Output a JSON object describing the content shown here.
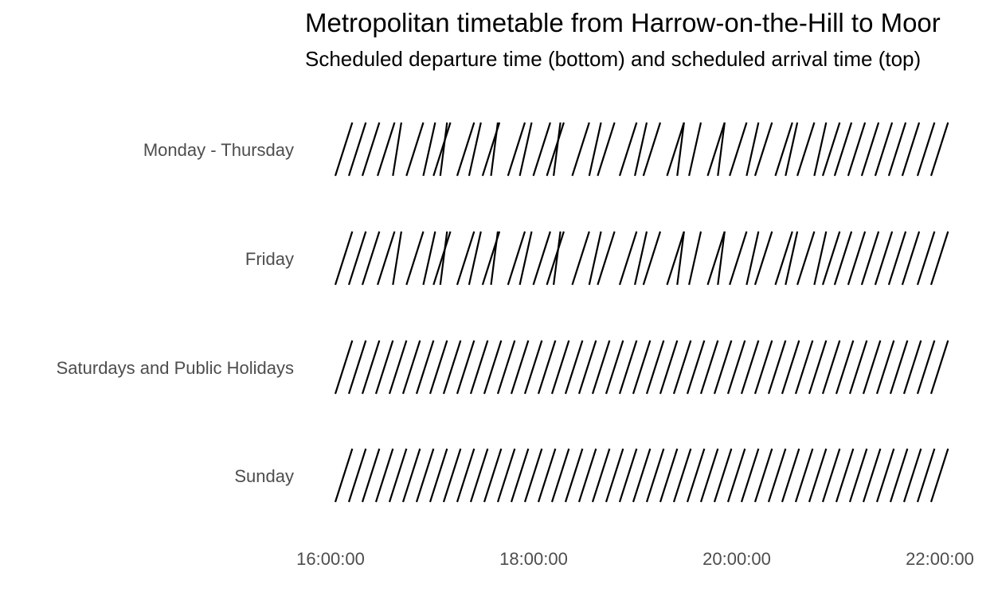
{
  "chart_data": {
    "type": "line",
    "title": "Metropolitan timetable from Harrow-on-the-Hill to Moor",
    "subtitle": "Scheduled departure time (bottom) and scheduled arrival time (top)",
    "xlabel": "",
    "ylabel": "",
    "grid": false,
    "legend": "none",
    "line_color": "#000000",
    "x_ticks": [
      "16:00:00",
      "18:00:00",
      "20:00:00",
      "22:00:00"
    ],
    "xlim": [
      "16:00",
      "22:00"
    ],
    "categories": [
      "Monday - Thursday",
      "Friday",
      "Saturdays and Public Holidays",
      "Sunday"
    ],
    "series": [
      {
        "name": "Monday - Thursday",
        "trips": [
          {
            "depart": "16:00",
            "arrive": "16:10"
          },
          {
            "depart": "16:08",
            "arrive": "16:18"
          },
          {
            "depart": "16:16",
            "arrive": "16:26"
          },
          {
            "depart": "16:25",
            "arrive": "16:35"
          },
          {
            "depart": "16:34",
            "arrive": "16:39"
          },
          {
            "depart": "16:42",
            "arrive": "16:52"
          },
          {
            "depart": "16:52",
            "arrive": "16:59"
          },
          {
            "depart": "16:58",
            "arrive": "17:08"
          },
          {
            "depart": "17:02",
            "arrive": "17:06"
          },
          {
            "depart": "17:12",
            "arrive": "17:22"
          },
          {
            "depart": "17:19",
            "arrive": "17:26"
          },
          {
            "depart": "17:27",
            "arrive": "17:37"
          },
          {
            "depart": "17:32",
            "arrive": "17:36"
          },
          {
            "depart": "17:42",
            "arrive": "17:52"
          },
          {
            "depart": "17:49",
            "arrive": "17:56"
          },
          {
            "depart": "17:57",
            "arrive": "18:07"
          },
          {
            "depart": "18:05",
            "arrive": "18:15"
          },
          {
            "depart": "18:09",
            "arrive": "18:13"
          },
          {
            "depart": "18:20",
            "arrive": "18:30"
          },
          {
            "depart": "18:30",
            "arrive": "18:37"
          },
          {
            "depart": "18:35",
            "arrive": "18:45"
          },
          {
            "depart": "18:48",
            "arrive": "18:58"
          },
          {
            "depart": "18:57",
            "arrive": "19:04"
          },
          {
            "depart": "19:02",
            "arrive": "19:12"
          },
          {
            "depart": "19:16",
            "arrive": "19:26"
          },
          {
            "depart": "19:22",
            "arrive": "19:26"
          },
          {
            "depart": "19:29",
            "arrive": "19:36"
          },
          {
            "depart": "19:40",
            "arrive": "19:50"
          },
          {
            "depart": "19:46",
            "arrive": "19:50"
          },
          {
            "depart": "19:53",
            "arrive": "20:03"
          },
          {
            "depart": "20:03",
            "arrive": "20:10"
          },
          {
            "depart": "20:08",
            "arrive": "20:18"
          },
          {
            "depart": "20:20",
            "arrive": "20:30"
          },
          {
            "depart": "20:26",
            "arrive": "20:33"
          },
          {
            "depart": "20:33",
            "arrive": "20:43"
          },
          {
            "depart": "20:43",
            "arrive": "20:50"
          },
          {
            "depart": "20:48",
            "arrive": "20:58"
          },
          {
            "depart": "20:55",
            "arrive": "21:05"
          },
          {
            "depart": "21:03",
            "arrive": "21:13"
          },
          {
            "depart": "21:11",
            "arrive": "21:21"
          },
          {
            "depart": "21:19",
            "arrive": "21:29"
          },
          {
            "depart": "21:27",
            "arrive": "21:37"
          },
          {
            "depart": "21:35",
            "arrive": "21:45"
          },
          {
            "depart": "21:44",
            "arrive": "21:54"
          },
          {
            "depart": "21:52",
            "arrive": "22:02"
          }
        ]
      },
      {
        "name": "Friday",
        "trips": [
          {
            "depart": "16:00",
            "arrive": "16:10"
          },
          {
            "depart": "16:08",
            "arrive": "16:18"
          },
          {
            "depart": "16:16",
            "arrive": "16:26"
          },
          {
            "depart": "16:25",
            "arrive": "16:35"
          },
          {
            "depart": "16:34",
            "arrive": "16:39"
          },
          {
            "depart": "16:42",
            "arrive": "16:52"
          },
          {
            "depart": "16:52",
            "arrive": "16:59"
          },
          {
            "depart": "16:58",
            "arrive": "17:08"
          },
          {
            "depart": "17:02",
            "arrive": "17:06"
          },
          {
            "depart": "17:12",
            "arrive": "17:22"
          },
          {
            "depart": "17:19",
            "arrive": "17:26"
          },
          {
            "depart": "17:27",
            "arrive": "17:37"
          },
          {
            "depart": "17:32",
            "arrive": "17:36"
          },
          {
            "depart": "17:42",
            "arrive": "17:52"
          },
          {
            "depart": "17:49",
            "arrive": "17:56"
          },
          {
            "depart": "17:57",
            "arrive": "18:07"
          },
          {
            "depart": "18:05",
            "arrive": "18:15"
          },
          {
            "depart": "18:09",
            "arrive": "18:13"
          },
          {
            "depart": "18:20",
            "arrive": "18:30"
          },
          {
            "depart": "18:30",
            "arrive": "18:37"
          },
          {
            "depart": "18:35",
            "arrive": "18:45"
          },
          {
            "depart": "18:48",
            "arrive": "18:58"
          },
          {
            "depart": "18:57",
            "arrive": "19:04"
          },
          {
            "depart": "19:02",
            "arrive": "19:12"
          },
          {
            "depart": "19:16",
            "arrive": "19:26"
          },
          {
            "depart": "19:22",
            "arrive": "19:26"
          },
          {
            "depart": "19:29",
            "arrive": "19:36"
          },
          {
            "depart": "19:40",
            "arrive": "19:50"
          },
          {
            "depart": "19:46",
            "arrive": "19:50"
          },
          {
            "depart": "19:53",
            "arrive": "20:03"
          },
          {
            "depart": "20:03",
            "arrive": "20:10"
          },
          {
            "depart": "20:08",
            "arrive": "20:18"
          },
          {
            "depart": "20:20",
            "arrive": "20:30"
          },
          {
            "depart": "20:26",
            "arrive": "20:33"
          },
          {
            "depart": "20:33",
            "arrive": "20:43"
          },
          {
            "depart": "20:43",
            "arrive": "20:50"
          },
          {
            "depart": "20:48",
            "arrive": "20:58"
          },
          {
            "depart": "20:55",
            "arrive": "21:05"
          },
          {
            "depart": "21:03",
            "arrive": "21:13"
          },
          {
            "depart": "21:11",
            "arrive": "21:21"
          },
          {
            "depart": "21:19",
            "arrive": "21:29"
          },
          {
            "depart": "21:27",
            "arrive": "21:37"
          },
          {
            "depart": "21:35",
            "arrive": "21:45"
          },
          {
            "depart": "21:44",
            "arrive": "21:54"
          },
          {
            "depart": "21:52",
            "arrive": "22:02"
          }
        ]
      },
      {
        "name": "Saturdays and Public Holidays",
        "trips": [
          {
            "depart": "16:00",
            "arrive": "16:10"
          },
          {
            "depart": "16:08",
            "arrive": "16:18"
          },
          {
            "depart": "16:16",
            "arrive": "16:26"
          },
          {
            "depart": "16:24",
            "arrive": "16:34"
          },
          {
            "depart": "16:32",
            "arrive": "16:42"
          },
          {
            "depart": "16:40",
            "arrive": "16:50"
          },
          {
            "depart": "16:48",
            "arrive": "16:58"
          },
          {
            "depart": "16:56",
            "arrive": "17:06"
          },
          {
            "depart": "17:04",
            "arrive": "17:14"
          },
          {
            "depart": "17:12",
            "arrive": "17:22"
          },
          {
            "depart": "17:20",
            "arrive": "17:30"
          },
          {
            "depart": "17:28",
            "arrive": "17:38"
          },
          {
            "depart": "17:36",
            "arrive": "17:46"
          },
          {
            "depart": "17:44",
            "arrive": "17:54"
          },
          {
            "depart": "17:52",
            "arrive": "18:02"
          },
          {
            "depart": "18:00",
            "arrive": "18:10"
          },
          {
            "depart": "18:08",
            "arrive": "18:18"
          },
          {
            "depart": "18:16",
            "arrive": "18:26"
          },
          {
            "depart": "18:24",
            "arrive": "18:34"
          },
          {
            "depart": "18:32",
            "arrive": "18:42"
          },
          {
            "depart": "18:40",
            "arrive": "18:50"
          },
          {
            "depart": "18:48",
            "arrive": "18:58"
          },
          {
            "depart": "18:56",
            "arrive": "19:06"
          },
          {
            "depart": "19:04",
            "arrive": "19:14"
          },
          {
            "depart": "19:12",
            "arrive": "19:22"
          },
          {
            "depart": "19:20",
            "arrive": "19:30"
          },
          {
            "depart": "19:28",
            "arrive": "19:38"
          },
          {
            "depart": "19:36",
            "arrive": "19:46"
          },
          {
            "depart": "19:44",
            "arrive": "19:54"
          },
          {
            "depart": "19:52",
            "arrive": "20:02"
          },
          {
            "depart": "20:00",
            "arrive": "20:10"
          },
          {
            "depart": "20:08",
            "arrive": "20:18"
          },
          {
            "depart": "20:16",
            "arrive": "20:26"
          },
          {
            "depart": "20:24",
            "arrive": "20:34"
          },
          {
            "depart": "20:32",
            "arrive": "20:42"
          },
          {
            "depart": "20:40",
            "arrive": "20:50"
          },
          {
            "depart": "20:48",
            "arrive": "20:58"
          },
          {
            "depart": "20:56",
            "arrive": "21:06"
          },
          {
            "depart": "21:04",
            "arrive": "21:14"
          },
          {
            "depart": "21:12",
            "arrive": "21:22"
          },
          {
            "depart": "21:20",
            "arrive": "21:30"
          },
          {
            "depart": "21:28",
            "arrive": "21:38"
          },
          {
            "depart": "21:36",
            "arrive": "21:46"
          },
          {
            "depart": "21:44",
            "arrive": "21:54"
          },
          {
            "depart": "21:52",
            "arrive": "22:02"
          }
        ]
      },
      {
        "name": "Sunday",
        "trips": [
          {
            "depart": "16:00",
            "arrive": "16:10"
          },
          {
            "depart": "16:08",
            "arrive": "16:18"
          },
          {
            "depart": "16:16",
            "arrive": "16:26"
          },
          {
            "depart": "16:24",
            "arrive": "16:34"
          },
          {
            "depart": "16:32",
            "arrive": "16:42"
          },
          {
            "depart": "16:40",
            "arrive": "16:50"
          },
          {
            "depart": "16:48",
            "arrive": "16:58"
          },
          {
            "depart": "16:56",
            "arrive": "17:06"
          },
          {
            "depart": "17:04",
            "arrive": "17:14"
          },
          {
            "depart": "17:12",
            "arrive": "17:22"
          },
          {
            "depart": "17:20",
            "arrive": "17:30"
          },
          {
            "depart": "17:28",
            "arrive": "17:38"
          },
          {
            "depart": "17:36",
            "arrive": "17:46"
          },
          {
            "depart": "17:44",
            "arrive": "17:54"
          },
          {
            "depart": "17:52",
            "arrive": "18:02"
          },
          {
            "depart": "18:00",
            "arrive": "18:10"
          },
          {
            "depart": "18:08",
            "arrive": "18:18"
          },
          {
            "depart": "18:16",
            "arrive": "18:26"
          },
          {
            "depart": "18:24",
            "arrive": "18:34"
          },
          {
            "depart": "18:32",
            "arrive": "18:42"
          },
          {
            "depart": "18:40",
            "arrive": "18:50"
          },
          {
            "depart": "18:48",
            "arrive": "18:58"
          },
          {
            "depart": "18:56",
            "arrive": "19:06"
          },
          {
            "depart": "19:04",
            "arrive": "19:14"
          },
          {
            "depart": "19:12",
            "arrive": "19:22"
          },
          {
            "depart": "19:20",
            "arrive": "19:30"
          },
          {
            "depart": "19:28",
            "arrive": "19:38"
          },
          {
            "depart": "19:36",
            "arrive": "19:46"
          },
          {
            "depart": "19:44",
            "arrive": "19:54"
          },
          {
            "depart": "19:52",
            "arrive": "20:02"
          },
          {
            "depart": "20:00",
            "arrive": "20:10"
          },
          {
            "depart": "20:08",
            "arrive": "20:18"
          },
          {
            "depart": "20:16",
            "arrive": "20:26"
          },
          {
            "depart": "20:24",
            "arrive": "20:34"
          },
          {
            "depart": "20:32",
            "arrive": "20:42"
          },
          {
            "depart": "20:40",
            "arrive": "20:50"
          },
          {
            "depart": "20:48",
            "arrive": "20:58"
          },
          {
            "depart": "20:56",
            "arrive": "21:06"
          },
          {
            "depart": "21:04",
            "arrive": "21:14"
          },
          {
            "depart": "21:12",
            "arrive": "21:22"
          },
          {
            "depart": "21:20",
            "arrive": "21:30"
          },
          {
            "depart": "21:28",
            "arrive": "21:38"
          },
          {
            "depart": "21:36",
            "arrive": "21:46"
          },
          {
            "depart": "21:44",
            "arrive": "21:54"
          },
          {
            "depart": "21:52",
            "arrive": "22:02"
          }
        ]
      }
    ]
  }
}
